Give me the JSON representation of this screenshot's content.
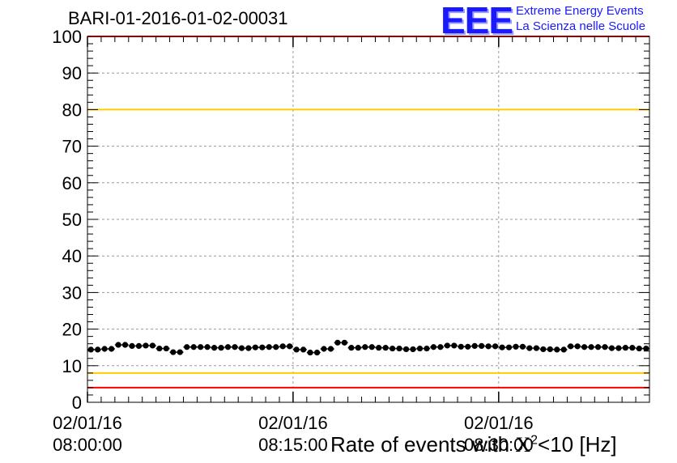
{
  "chart_data": {
    "type": "scatter",
    "title": "BARI-01-2016-01-02-00031",
    "xlabel": {
      "prefix": "Rate of events with ",
      "symbol": "X",
      "superscript": "2",
      "suffix": "<10 [Hz]"
    },
    "ylabel": "",
    "ylim": [
      0,
      100
    ],
    "yticks": [
      0,
      10,
      20,
      30,
      40,
      50,
      60,
      70,
      80,
      90,
      100
    ],
    "xlim": [
      "2016-01-02 08:00:00",
      "2016-01-02 08:41:00"
    ],
    "xticks": [
      {
        "date": "02/01/16",
        "time": "08:00:00",
        "minute": 0
      },
      {
        "date": "02/01/16",
        "time": "08:15:00",
        "minute": 15
      },
      {
        "date": "02/01/16",
        "time": "08:30:00",
        "minute": 30
      }
    ],
    "grid": true,
    "reference_lines": [
      {
        "y": 100,
        "color": "#ff0000"
      },
      {
        "y": 80,
        "color": "#ffcc00"
      },
      {
        "y": 8,
        "color": "#ffcc00"
      },
      {
        "y": 4,
        "color": "#ff0000"
      }
    ],
    "series": [
      {
        "x_minutes": [
          0.25,
          0.75,
          1.25,
          1.75,
          2.25,
          2.75,
          3.25,
          3.75,
          4.25,
          4.75,
          5.25,
          5.75,
          6.25,
          6.75,
          7.25,
          7.75,
          8.25,
          8.75,
          9.25,
          9.75,
          10.25,
          10.75,
          11.25,
          11.75,
          12.25,
          12.75,
          13.25,
          13.75,
          14.25,
          14.75,
          15.25,
          15.75,
          16.25,
          16.75,
          17.25,
          17.75,
          18.25,
          18.75,
          19.25,
          19.75,
          20.25,
          20.75,
          21.25,
          21.75,
          22.25,
          22.75,
          23.25,
          23.75,
          24.25,
          24.75,
          25.25,
          25.75,
          26.25,
          26.75,
          27.25,
          27.75,
          28.25,
          28.75,
          29.25,
          29.75,
          30.25,
          30.75,
          31.25,
          31.75,
          32.25,
          32.75,
          33.25,
          33.75,
          34.25,
          34.75,
          35.25,
          35.75,
          36.25,
          36.75,
          37.25,
          37.75,
          38.25,
          38.75,
          39.25,
          39.75,
          40.25,
          40.75
        ],
        "values": [
          14.4,
          14.4,
          14.6,
          14.6,
          15.7,
          15.7,
          15.4,
          15.4,
          15.5,
          15.5,
          14.7,
          14.7,
          13.7,
          13.7,
          15.1,
          15.1,
          15.1,
          15.1,
          14.9,
          14.9,
          15.1,
          15.1,
          14.8,
          14.8,
          15.0,
          15.0,
          15.1,
          15.1,
          15.3,
          15.3,
          14.4,
          14.4,
          13.6,
          13.6,
          14.6,
          14.6,
          16.3,
          16.3,
          14.9,
          14.9,
          15.1,
          15.1,
          14.9,
          14.9,
          14.7,
          14.7,
          14.5,
          14.5,
          14.7,
          14.7,
          15.1,
          15.1,
          15.5,
          15.5,
          15.2,
          15.2,
          15.4,
          15.4,
          15.3,
          15.3,
          15.0,
          15.0,
          15.2,
          15.2,
          14.8,
          14.8,
          14.5,
          14.5,
          14.4,
          14.4,
          15.3,
          15.3,
          15.1,
          15.1,
          15.1,
          15.1,
          14.8,
          14.8,
          14.9,
          14.9,
          14.7,
          14.7
        ]
      }
    ]
  },
  "logo": {
    "mark": "EEE",
    "line1": "Extreme Energy Events",
    "line2": "La Scienza nelle Scuole"
  }
}
